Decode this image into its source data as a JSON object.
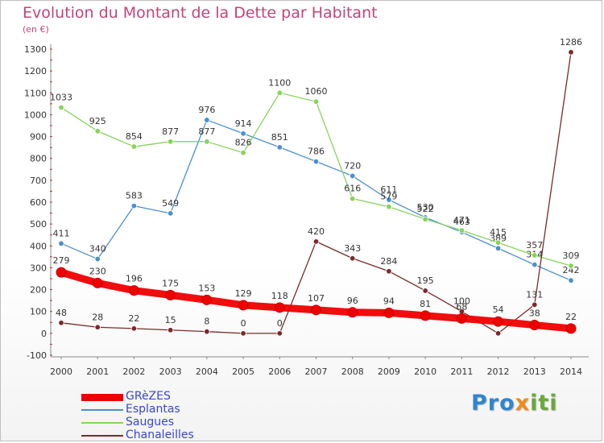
{
  "title": "Evolution du Montant de la Dette par Habitant",
  "unit": "(en €)",
  "logo": {
    "p1": "Pro",
    "p2": "x",
    "p3": "iti"
  },
  "chart_data": {
    "type": "line",
    "x": [
      "2000",
      "2001",
      "2002",
      "2003",
      "2004",
      "2005",
      "2006",
      "2007",
      "2008",
      "2009",
      "2010",
      "2011",
      "2012",
      "2013",
      "2014"
    ],
    "ylim": [
      -100,
      1300
    ],
    "yticks": [
      -100,
      0,
      100,
      200,
      300,
      400,
      500,
      600,
      700,
      800,
      900,
      1000,
      1100,
      1200,
      1300
    ],
    "grid": false,
    "legend_position": "bottom-left",
    "series": [
      {
        "name": "Esplantas",
        "color": "#4a8fd0",
        "values": [
          411,
          340,
          583,
          549,
          976,
          914,
          851,
          786,
          720,
          611,
          530,
          463,
          389,
          314,
          242
        ],
        "labels": [
          "411",
          "340",
          "583",
          "549",
          "976",
          "914",
          "851",
          "786",
          "720",
          "611",
          "530",
          "463",
          "389",
          "314",
          "242"
        ]
      },
      {
        "name": "Saugues",
        "color": "#86d45a",
        "values": [
          1033,
          925,
          854,
          877,
          877,
          826,
          1100,
          1060,
          616,
          579,
          522,
          471,
          415,
          357,
          309
        ],
        "labels": [
          "1033",
          "925",
          "854",
          "877",
          "877",
          "826",
          "1100",
          "1060",
          "616",
          "579",
          "522",
          "471",
          "415",
          "357",
          "309"
        ]
      },
      {
        "name": "Chanaleilles",
        "color": "#7a2a2a",
        "values": [
          48,
          28,
          22,
          15,
          8,
          0,
          0,
          420,
          343,
          284,
          195,
          100,
          0,
          131,
          1286
        ],
        "labels": [
          "48",
          "28",
          "22",
          "15",
          "8",
          "0",
          "0",
          "420",
          "343",
          "284",
          "195",
          "100",
          "",
          "131",
          "1286"
        ]
      },
      {
        "name": "GRèZES",
        "color": "#ee0000",
        "values": [
          279,
          230,
          196,
          175,
          153,
          129,
          118,
          107,
          96,
          94,
          81,
          68,
          54,
          38,
          22
        ],
        "labels": [
          "279",
          "230",
          "196",
          "175",
          "153",
          "129",
          "118",
          "107",
          "96",
          "94",
          "81",
          "68",
          "54",
          "38",
          "22"
        ]
      }
    ],
    "legend": [
      "GRèZES",
      "Esplantas",
      "Saugues",
      "Chanaleilles"
    ]
  }
}
